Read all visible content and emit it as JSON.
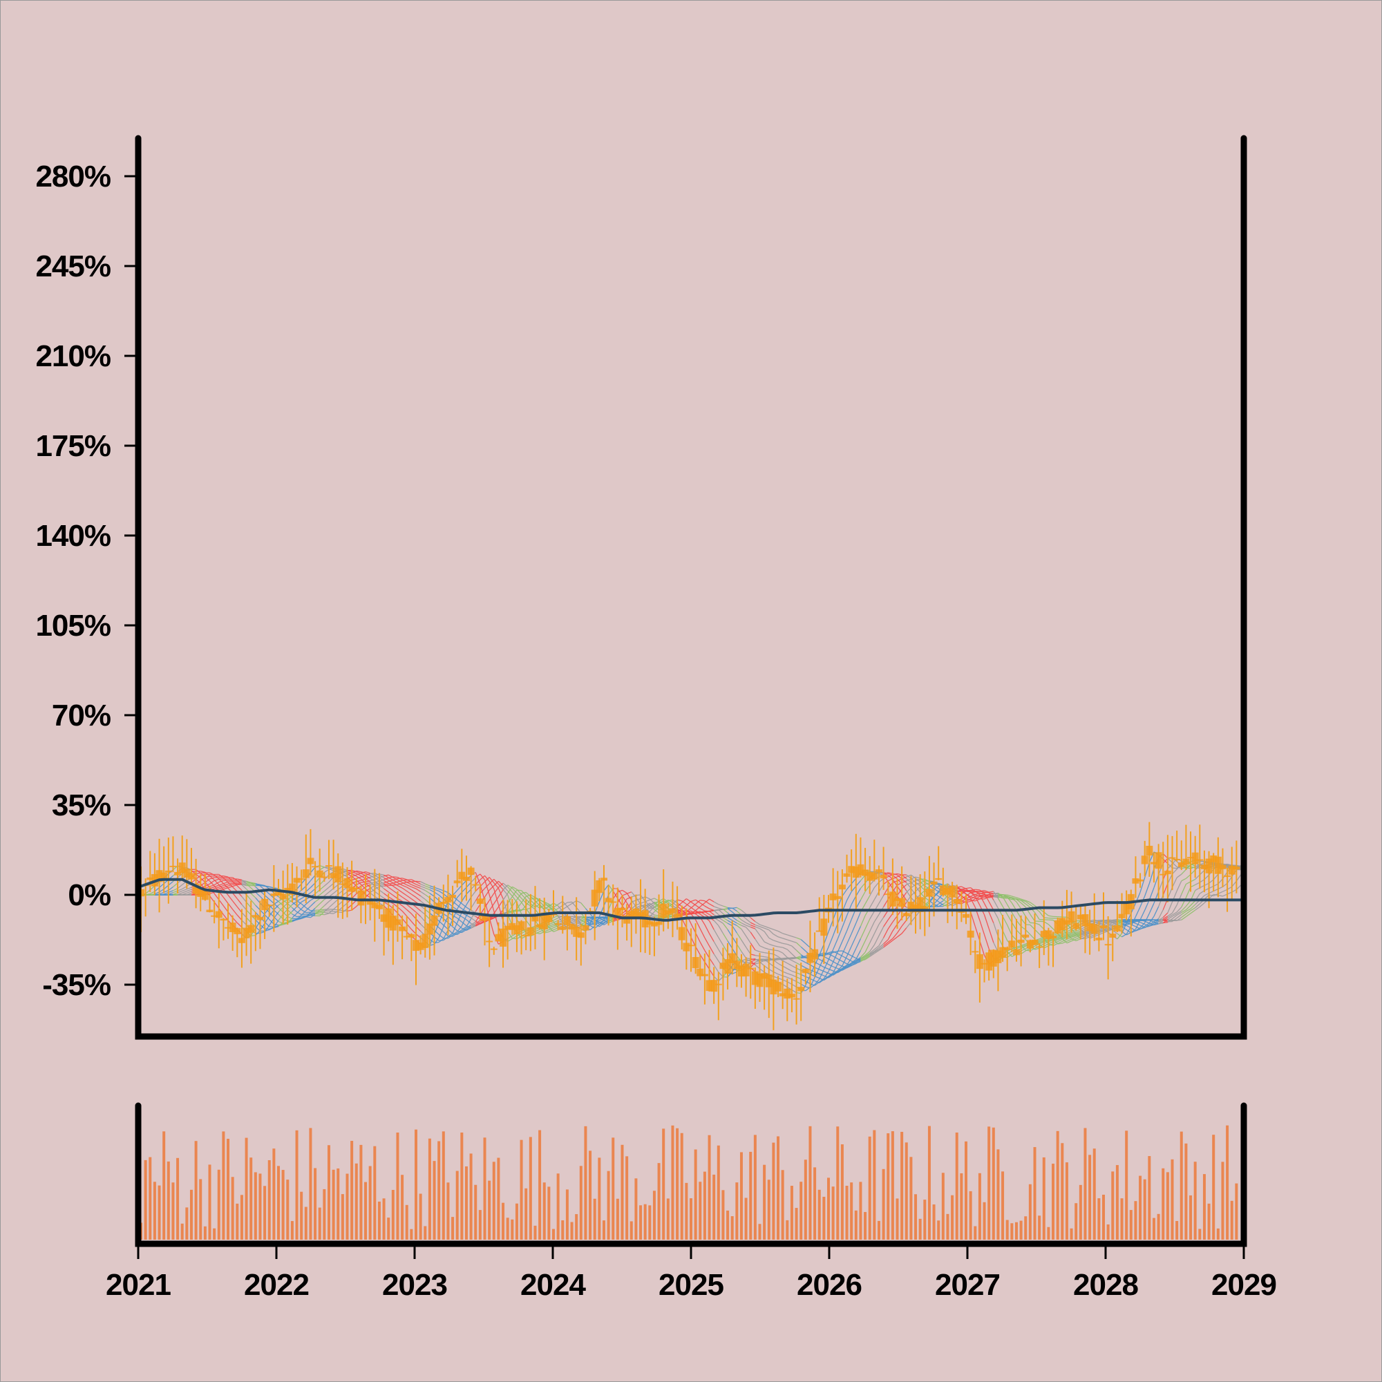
{
  "chart_data": {
    "type": "candlestick",
    "x_axis": {
      "range": [
        "2021",
        "2029"
      ],
      "tick_labels": [
        "2021",
        "2022",
        "2023",
        "2024",
        "2025",
        "2026",
        "2027",
        "2028",
        "2029"
      ]
    },
    "y_axis": {
      "unit": "%",
      "range": [
        -55,
        295
      ],
      "ticks": [
        -35,
        0,
        35,
        70,
        105,
        140,
        175,
        210,
        245,
        280
      ],
      "tick_labels": [
        "-35%",
        "0%",
        "35%",
        "70%",
        "105%",
        "140%",
        "175%",
        "210%",
        "245%",
        "280%"
      ]
    },
    "grid": false,
    "legend": "none",
    "price_path": {
      "description_units": "percent change",
      "dates": [
        "2021.00",
        "2021.25",
        "2021.40",
        "2021.60",
        "2021.75",
        "2021.90",
        "2022.10",
        "2022.25",
        "2022.45",
        "2022.60",
        "2022.75",
        "2022.90",
        "2023.05",
        "2023.20",
        "2023.40",
        "2023.55",
        "2023.70",
        "2023.85",
        "2024.00",
        "2024.20",
        "2024.35",
        "2024.50",
        "2024.70",
        "2024.85",
        "2025.00",
        "2025.15",
        "2025.30",
        "2025.45",
        "2025.60",
        "2025.75",
        "2025.90",
        "2026.05",
        "2026.20",
        "2026.35",
        "2026.50",
        "2026.65",
        "2026.80",
        "2026.95",
        "2027.10",
        "2027.25",
        "2027.45",
        "2027.60",
        "2027.75",
        "2027.90",
        "2028.05",
        "2028.20",
        "2028.30",
        "2028.45",
        "2028.60",
        "2028.75",
        "2028.95"
      ],
      "values": [
        0,
        12,
        5,
        -10,
        -18,
        -5,
        2,
        12,
        8,
        0,
        -5,
        -15,
        -22,
        -2,
        10,
        -20,
        -15,
        -12,
        -8,
        -15,
        5,
        -8,
        -10,
        -5,
        -22,
        -35,
        -25,
        -32,
        -35,
        -40,
        -22,
        0,
        10,
        8,
        -5,
        -5,
        5,
        -2,
        -28,
        -22,
        -18,
        -15,
        -10,
        -12,
        -18,
        0,
        18,
        10,
        14,
        12,
        10
      ]
    },
    "moving_averages": {
      "long_term_color": "#2b4a63",
      "long_term_values": [
        3,
        6,
        6,
        2,
        1,
        1,
        2,
        1,
        -1,
        -1,
        -2,
        -2,
        -3,
        -4,
        -6,
        -7,
        -8,
        -8,
        -8,
        -7,
        -7,
        -7,
        -9,
        -9,
        -10,
        -9,
        -9,
        -8,
        -8,
        -7,
        -7,
        -6,
        -6,
        -6,
        -6,
        -6,
        -6,
        -6,
        -6,
        -6,
        -6,
        -5,
        -5,
        -4,
        -3,
        -3,
        -2,
        -2,
        -2,
        -2,
        -2
      ],
      "ribbon_colors": {
        "rising": "#4a90c8",
        "rising_strong": "#8dc06a",
        "falling": "#f24a4a",
        "neutral": "#9a9a9a"
      }
    },
    "candle_color": "#f59a1a",
    "wick_color": "#f2a01e",
    "volume_panel": {
      "type": "bar",
      "color": "#ea8650",
      "bars": 240
    }
  }
}
